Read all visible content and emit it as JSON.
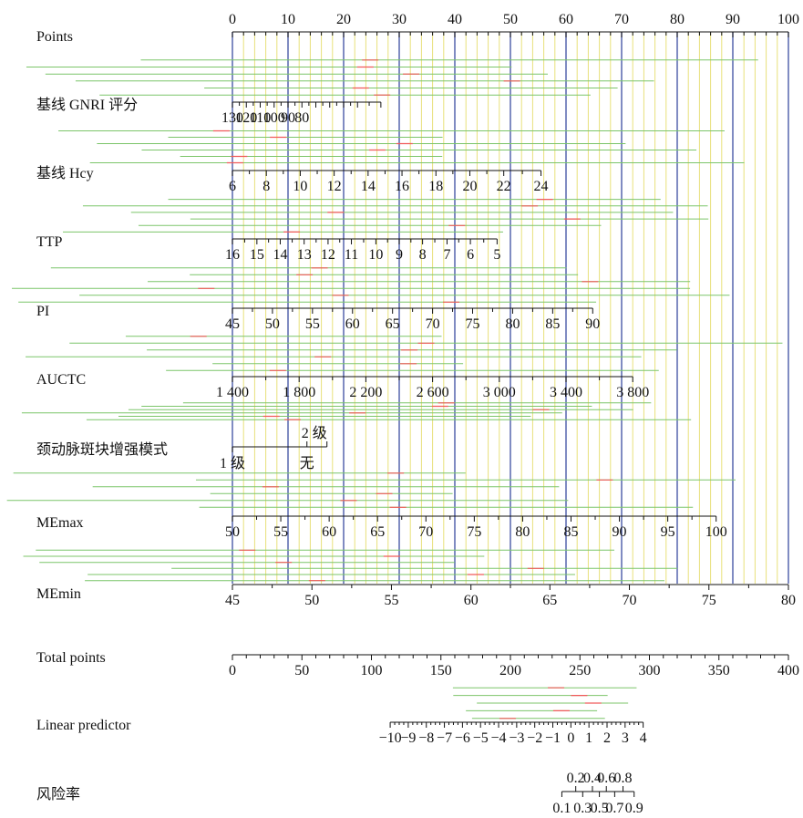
{
  "chart_data": {
    "type": "nomogram",
    "points_axis": {
      "label": "Points",
      "range": [
        0,
        100
      ],
      "major_ticks": [
        0,
        10,
        20,
        30,
        40,
        50,
        60,
        70,
        80,
        90,
        100
      ]
    },
    "variables": [
      {
        "name": "基线 GNRI 评分",
        "ticks": [
          "130",
          "120",
          "110",
          "100",
          "90",
          "80"
        ],
        "points": [
          0,
          2.5,
          5,
          7.5,
          10,
          12.5,
          15,
          17.5,
          20,
          22.5,
          26.7
        ]
      },
      {
        "name": "基线 Hcy",
        "ticks": [
          "6",
          "8",
          "10",
          "12",
          "14",
          "16",
          "18",
          "20",
          "22",
          "24"
        ],
        "points": [
          0,
          6.1,
          12.2,
          18.3,
          24.4,
          30.5,
          36.6,
          42.7,
          48.8,
          55.5
        ]
      },
      {
        "name": "TTP",
        "ticks": [
          "16",
          "15",
          "14",
          "13",
          "12",
          "11",
          "10",
          "9",
          "8",
          "7",
          "6",
          "5"
        ],
        "points": [
          0,
          4.4,
          8.6,
          12.9,
          17.2,
          21.4,
          25.8,
          30,
          34.2,
          38.6,
          42.8,
          47.6
        ]
      },
      {
        "name": "PI",
        "ticks": [
          "45",
          "50",
          "55",
          "60",
          "65",
          "70",
          "75",
          "80",
          "85",
          "90"
        ],
        "points": [
          0,
          7.2,
          14.4,
          21.6,
          28.8,
          36,
          43.2,
          50.4,
          57.6,
          64.8
        ]
      },
      {
        "name": "AUCTC",
        "ticks": [
          "1 400",
          "1 800",
          "2 200",
          "2 600",
          "3 000",
          "3 400",
          "3 800"
        ],
        "points": [
          0,
          12,
          24,
          36,
          48,
          60,
          72
        ]
      },
      {
        "name": "颈动脉斑块增强模式",
        "ticks_above": [
          "2 级"
        ],
        "ticks_below": [
          "1 级",
          "无"
        ],
        "points_above": [
          13.4
        ],
        "points_below": [
          0,
          13.4
        ],
        "points_max": 17
      },
      {
        "name": "MEmax",
        "ticks": [
          "50",
          "55",
          "60",
          "65",
          "70",
          "75",
          "80",
          "85",
          "90",
          "95",
          "100"
        ],
        "points": [
          0,
          8.7,
          17.4,
          26.1,
          34.8,
          43.5,
          52.2,
          60.9,
          69.6,
          78.3,
          87
        ]
      },
      {
        "name": "MEmin",
        "ticks": [
          "45",
          "50",
          "55",
          "60",
          "65",
          "70",
          "75",
          "80"
        ],
        "points": [
          0,
          14.3,
          28.6,
          42.9,
          57.1,
          71.4,
          85.7,
          100
        ]
      }
    ],
    "total_points": {
      "label": "Total points",
      "ticks": [
        "0",
        "50",
        "100",
        "150",
        "200",
        "250",
        "300",
        "350",
        "400"
      ],
      "range": [
        0,
        400
      ]
    },
    "linear_predictor": {
      "label": "Linear predictor",
      "ticks": [
        "−10",
        "−9",
        "−8",
        "−7",
        "−6",
        "−5",
        "−4",
        "−3",
        "−2",
        "−1",
        "0",
        "1",
        "2",
        "3",
        "4"
      ],
      "total_points": [
        113.5,
        126.5,
        139.5,
        152.5,
        165.5,
        178.5,
        191.5,
        204.5,
        217.5,
        230.5,
        243.5,
        256.5,
        269.5,
        282.5,
        295.5
      ]
    },
    "risk": {
      "label": "风险率",
      "ticks_above": [
        "0.2",
        "0.4",
        "0.6",
        "0.8"
      ],
      "ticks_below": [
        "0.1",
        "0.3",
        "0.5",
        "0.7",
        "0.9"
      ],
      "total_points_above": [
        247,
        259,
        269,
        281
      ],
      "total_points_below": [
        237,
        252,
        264,
        275,
        289
      ]
    },
    "colors": {
      "axis": "#111111",
      "major_grid": "#4a5aa8",
      "minor_grid": "#e8e07a",
      "guide_line": "#7cc56a",
      "mark": "#f05a5a"
    },
    "grid": true
  }
}
